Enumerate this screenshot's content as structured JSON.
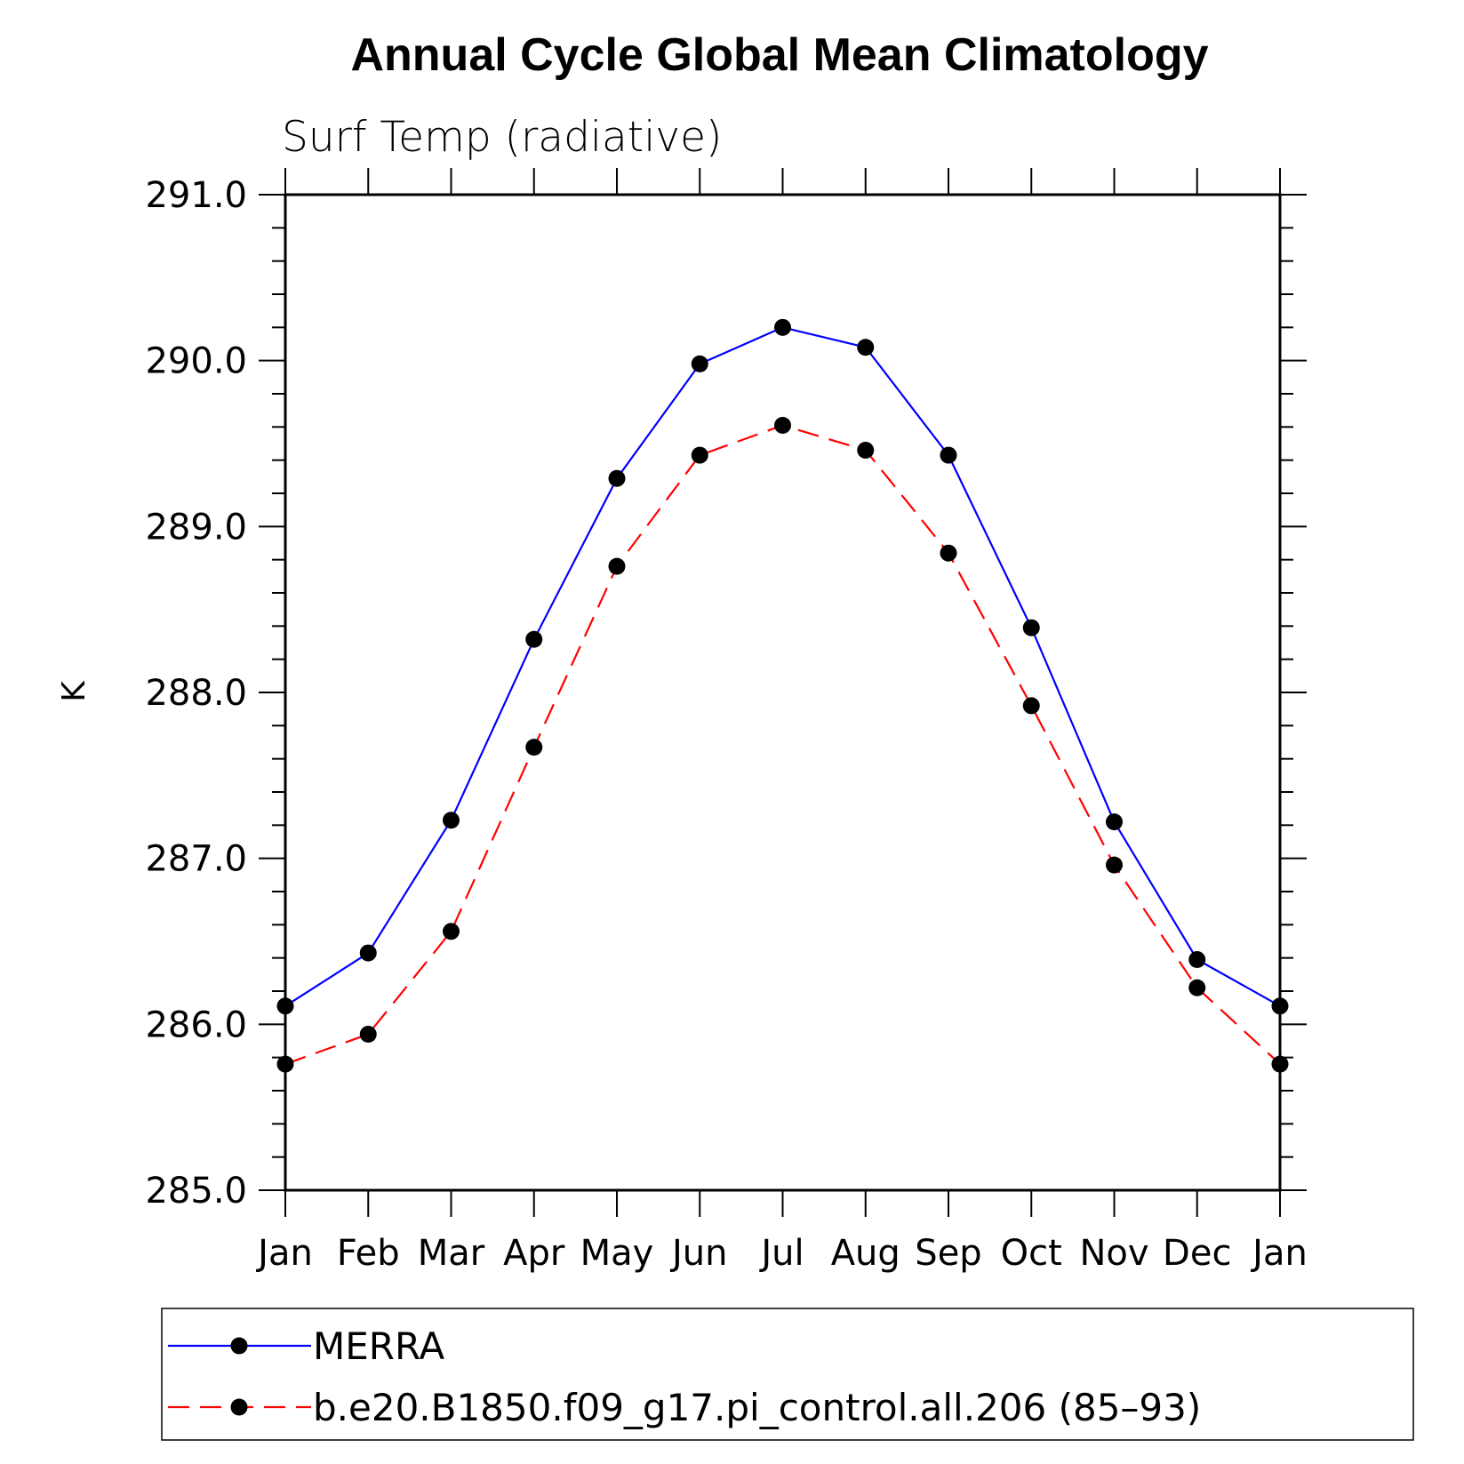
{
  "chart_data": {
    "type": "line",
    "title": "Annual Cycle Global Mean Climatology",
    "subtitle": "Surf Temp (radiative)",
    "ylabel": "K",
    "xlabel": "",
    "categories": [
      "Jan",
      "Feb",
      "Mar",
      "Apr",
      "May",
      "Jun",
      "Jul",
      "Aug",
      "Sep",
      "Oct",
      "Nov",
      "Dec",
      "Jan"
    ],
    "ylim": [
      285.0,
      291.0
    ],
    "yticks": [
      "285.0",
      "286.0",
      "287.0",
      "288.0",
      "289.0",
      "290.0",
      "291.0"
    ],
    "grid": false,
    "legend_position": "bottom",
    "series": [
      {
        "name": "MERRA",
        "color": "#0000ff",
        "dashed": false,
        "values": [
          286.11,
          286.43,
          287.23,
          288.32,
          289.29,
          289.98,
          290.2,
          290.08,
          289.43,
          288.39,
          287.22,
          286.39,
          286.11
        ]
      },
      {
        "name": "b.e20.B1850.f09_g17.pi_control.all.206 (85–93)",
        "color": "#ff0000",
        "dashed": true,
        "values": [
          285.76,
          285.94,
          286.56,
          287.67,
          288.76,
          289.43,
          289.61,
          289.46,
          288.84,
          287.92,
          286.96,
          286.22,
          285.76
        ]
      }
    ]
  }
}
